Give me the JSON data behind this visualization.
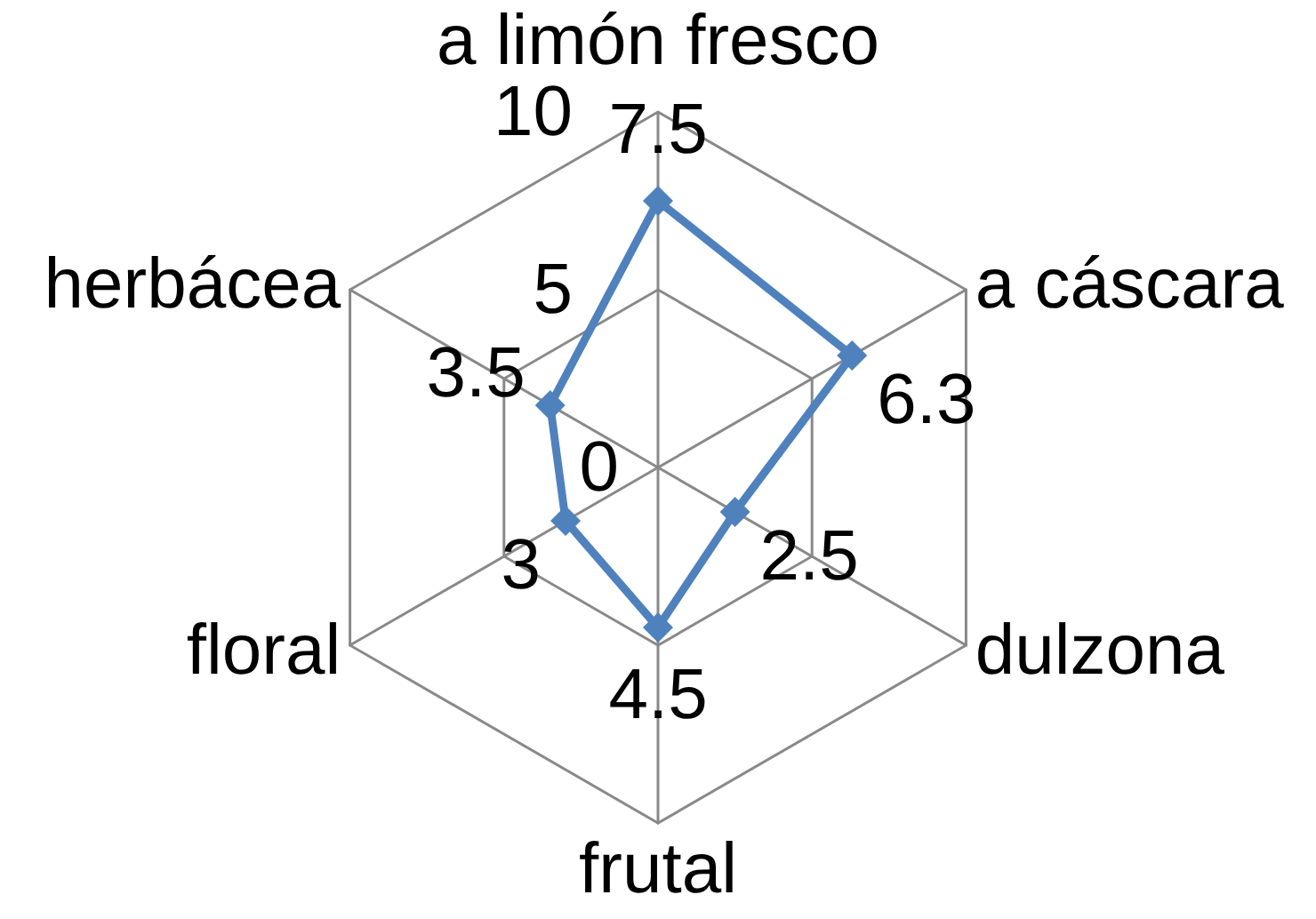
{
  "chart_data": {
    "type": "radar",
    "categories": [
      "a limón fresco",
      "a cáscara",
      "dulzona",
      "frutal",
      "floral",
      "herbácea"
    ],
    "series": [
      {
        "color": "#4f81bd",
        "values": [
          7.5,
          6.3,
          2.5,
          4.5,
          3,
          3.5
        ]
      }
    ],
    "ylim": [
      0,
      10
    ],
    "yticks": [
      0,
      5,
      10
    ],
    "grid": true,
    "marker": "diamond",
    "line_style": "solid",
    "data_labels": true
  }
}
